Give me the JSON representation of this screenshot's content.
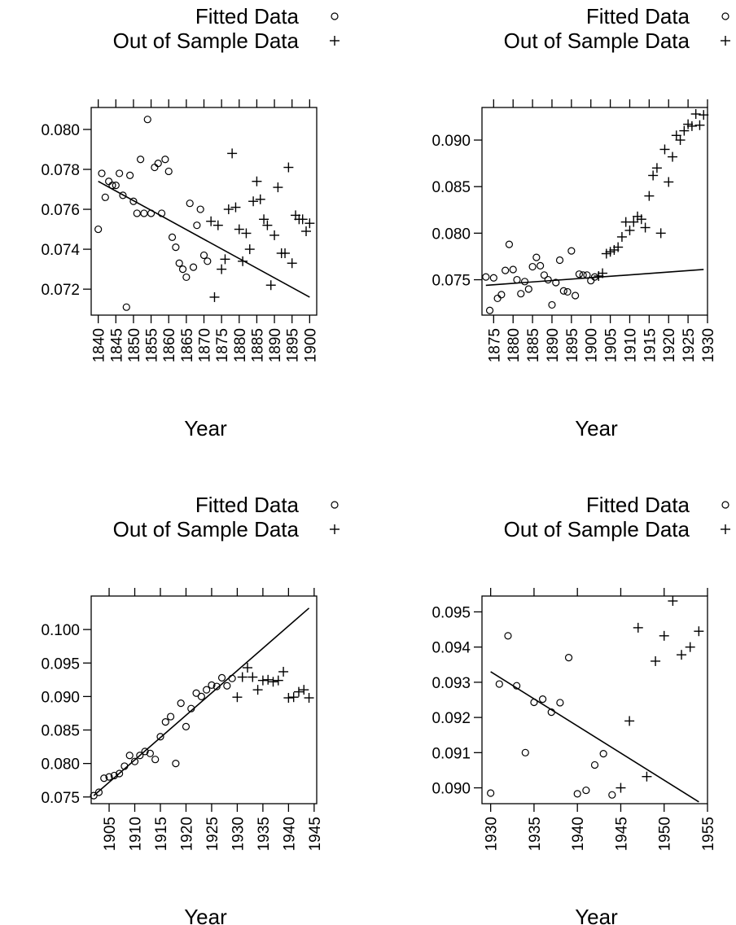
{
  "chart_data": [
    {
      "type": "scatter",
      "xlabel": "Year",
      "legend": [
        {
          "label": "Fitted Data",
          "symbol": "circle"
        },
        {
          "label": "Out of Sample Data",
          "symbol": "plus"
        }
      ],
      "xlim": [
        1838,
        1902
      ],
      "ylim": [
        0.0707,
        0.0811
      ],
      "xticks": [
        1840,
        1845,
        1850,
        1855,
        1860,
        1865,
        1870,
        1875,
        1880,
        1885,
        1890,
        1895,
        1900
      ],
      "yticks": [
        0.072,
        0.074,
        0.076,
        0.078,
        0.08
      ],
      "ytick_labels": [
        "0.072",
        "0.074",
        "0.076",
        "0.078",
        "0.080"
      ],
      "fitted_data": [
        [
          1840,
          0.075
        ],
        [
          1841,
          0.0778
        ],
        [
          1842,
          0.0766
        ],
        [
          1843,
          0.0774
        ],
        [
          1844,
          0.0772
        ],
        [
          1845,
          0.0772
        ],
        [
          1846,
          0.0778
        ],
        [
          1847,
          0.0767
        ],
        [
          1848,
          0.0711
        ],
        [
          1849,
          0.0777
        ],
        [
          1850,
          0.0764
        ],
        [
          1851,
          0.0758
        ],
        [
          1852,
          0.0785
        ],
        [
          1853,
          0.0758
        ],
        [
          1854,
          0.0805
        ],
        [
          1855,
          0.0758
        ],
        [
          1856,
          0.0781
        ],
        [
          1857,
          0.0783
        ],
        [
          1858,
          0.0758
        ],
        [
          1859,
          0.0785
        ],
        [
          1860,
          0.0779
        ],
        [
          1861,
          0.0746
        ],
        [
          1862,
          0.0741
        ],
        [
          1863,
          0.0733
        ],
        [
          1864,
          0.073
        ],
        [
          1865,
          0.0726
        ],
        [
          1866,
          0.0763
        ],
        [
          1867,
          0.0731
        ],
        [
          1868,
          0.0752
        ],
        [
          1869,
          0.076
        ],
        [
          1870,
          0.0737
        ],
        [
          1871,
          0.0734
        ]
      ],
      "out_of_sample_data": [
        [
          1872,
          0.0754
        ],
        [
          1873,
          0.0716
        ],
        [
          1874,
          0.0752
        ],
        [
          1875,
          0.073
        ],
        [
          1876,
          0.0735
        ],
        [
          1877,
          0.076
        ],
        [
          1878,
          0.0788
        ],
        [
          1879,
          0.0761
        ],
        [
          1880,
          0.075
        ],
        [
          1881,
          0.0734
        ],
        [
          1882,
          0.0748
        ],
        [
          1883,
          0.074
        ],
        [
          1884,
          0.0764
        ],
        [
          1885,
          0.0774
        ],
        [
          1886,
          0.0765
        ],
        [
          1887,
          0.0755
        ],
        [
          1888,
          0.0752
        ],
        [
          1889,
          0.0722
        ],
        [
          1890,
          0.0747
        ],
        [
          1891,
          0.0771
        ],
        [
          1892,
          0.0738
        ],
        [
          1893,
          0.0738
        ],
        [
          1894,
          0.0781
        ],
        [
          1895,
          0.0733
        ],
        [
          1896,
          0.0757
        ],
        [
          1897,
          0.0755
        ],
        [
          1898,
          0.0755
        ],
        [
          1899,
          0.0749
        ],
        [
          1900,
          0.0753
        ]
      ],
      "fit_line": [
        [
          1840,
          0.0774
        ],
        [
          1900,
          0.0716
        ]
      ]
    },
    {
      "type": "scatter",
      "xlabel": "Year",
      "legend": [
        {
          "label": "Fitted Data",
          "symbol": "circle"
        },
        {
          "label": "Out of Sample Data",
          "symbol": "plus"
        }
      ],
      "xlim": [
        1872,
        1930
      ],
      "ylim": [
        0.0712,
        0.0935
      ],
      "xticks": [
        1875,
        1880,
        1885,
        1890,
        1895,
        1900,
        1905,
        1910,
        1915,
        1920,
        1925,
        1930
      ],
      "yticks": [
        0.075,
        0.08,
        0.085,
        0.09
      ],
      "ytick_labels": [
        "0.075",
        "0.080",
        "0.085",
        "0.090"
      ],
      "fitted_data": [
        [
          1873,
          0.0753
        ],
        [
          1874,
          0.0717
        ],
        [
          1875,
          0.0752
        ],
        [
          1876,
          0.073
        ],
        [
          1877,
          0.0734
        ],
        [
          1878,
          0.076
        ],
        [
          1879,
          0.0788
        ],
        [
          1880,
          0.0761
        ],
        [
          1881,
          0.075
        ],
        [
          1882,
          0.0735
        ],
        [
          1883,
          0.0748
        ],
        [
          1884,
          0.074
        ],
        [
          1885,
          0.0764
        ],
        [
          1886,
          0.0774
        ],
        [
          1887,
          0.0765
        ],
        [
          1888,
          0.0755
        ],
        [
          1889,
          0.075
        ],
        [
          1890,
          0.0723
        ],
        [
          1891,
          0.0747
        ],
        [
          1892,
          0.0771
        ],
        [
          1893,
          0.0738
        ],
        [
          1894,
          0.0737
        ],
        [
          1895,
          0.0781
        ],
        [
          1896,
          0.0733
        ],
        [
          1897,
          0.0756
        ],
        [
          1898,
          0.0755
        ],
        [
          1899,
          0.0755
        ],
        [
          1900,
          0.0749
        ],
        [
          1901,
          0.0753
        ]
      ],
      "out_of_sample_data": [
        [
          1902,
          0.0754
        ],
        [
          1903,
          0.0757
        ],
        [
          1904,
          0.0778
        ],
        [
          1905,
          0.078
        ],
        [
          1906,
          0.0782
        ],
        [
          1907,
          0.0785
        ],
        [
          1908,
          0.0796
        ],
        [
          1909,
          0.0812
        ],
        [
          1910,
          0.0803
        ],
        [
          1911,
          0.0812
        ],
        [
          1912,
          0.0818
        ],
        [
          1913,
          0.0815
        ],
        [
          1914,
          0.0806
        ],
        [
          1915,
          0.084
        ],
        [
          1916,
          0.0862
        ],
        [
          1917,
          0.087
        ],
        [
          1918,
          0.08
        ],
        [
          1919,
          0.089
        ],
        [
          1920,
          0.0855
        ],
        [
          1921,
          0.0882
        ],
        [
          1922,
          0.0905
        ],
        [
          1923,
          0.09
        ],
        [
          1924,
          0.091
        ],
        [
          1925,
          0.0917
        ],
        [
          1926,
          0.0915
        ],
        [
          1927,
          0.0928
        ],
        [
          1928,
          0.0916
        ],
        [
          1929,
          0.0927
        ]
      ],
      "fit_line": [
        [
          1873,
          0.0744
        ],
        [
          1929,
          0.0761
        ]
      ]
    },
    {
      "type": "scatter",
      "xlabel": "Year",
      "legend": [
        {
          "label": "Fitted Data",
          "symbol": "circle"
        },
        {
          "label": "Out of Sample Data",
          "symbol": "plus"
        }
      ],
      "xlim": [
        1901.5,
        1945.5
      ],
      "ylim": [
        0.074,
        0.105
      ],
      "xticks": [
        1905,
        1910,
        1915,
        1920,
        1925,
        1930,
        1935,
        1940,
        1945
      ],
      "yticks": [
        0.075,
        0.08,
        0.085,
        0.09,
        0.095,
        0.1
      ],
      "ytick_labels": [
        "0.075",
        "0.080",
        "0.085",
        "0.090",
        "0.095",
        "0.100"
      ],
      "fitted_data": [
        [
          1902,
          0.0752
        ],
        [
          1903,
          0.0757
        ],
        [
          1904,
          0.0778
        ],
        [
          1905,
          0.078
        ],
        [
          1906,
          0.0782
        ],
        [
          1907,
          0.0785
        ],
        [
          1908,
          0.0796
        ],
        [
          1909,
          0.0812
        ],
        [
          1910,
          0.0803
        ],
        [
          1911,
          0.0812
        ],
        [
          1912,
          0.0818
        ],
        [
          1913,
          0.0815
        ],
        [
          1914,
          0.0806
        ],
        [
          1915,
          0.084
        ],
        [
          1916,
          0.0862
        ],
        [
          1917,
          0.087
        ],
        [
          1918,
          0.08
        ],
        [
          1919,
          0.089
        ],
        [
          1920,
          0.0855
        ],
        [
          1921,
          0.0882
        ],
        [
          1922,
          0.0905
        ],
        [
          1923,
          0.09
        ],
        [
          1924,
          0.091
        ],
        [
          1925,
          0.0917
        ],
        [
          1926,
          0.0915
        ],
        [
          1927,
          0.0928
        ],
        [
          1928,
          0.0916
        ],
        [
          1929,
          0.0927
        ]
      ],
      "out_of_sample_data": [
        [
          1930,
          0.0899
        ],
        [
          1931,
          0.0929
        ],
        [
          1932,
          0.0943
        ],
        [
          1933,
          0.0929
        ],
        [
          1934,
          0.091
        ],
        [
          1935,
          0.0924
        ],
        [
          1936,
          0.0925
        ],
        [
          1937,
          0.0922
        ],
        [
          1938,
          0.0924
        ],
        [
          1939,
          0.0937
        ],
        [
          1940,
          0.0898
        ],
        [
          1941,
          0.0899
        ],
        [
          1942,
          0.0907
        ],
        [
          1943,
          0.091
        ],
        [
          1944,
          0.0898
        ]
      ],
      "fit_line": [
        [
          1902,
          0.0752
        ],
        [
          1944,
          0.1032
        ]
      ]
    },
    {
      "type": "scatter",
      "xlabel": "Year",
      "legend": [
        {
          "label": "Fitted Data",
          "symbol": "circle"
        },
        {
          "label": "Out of Sample Data",
          "symbol": "plus"
        }
      ],
      "xlim": [
        1929,
        1955
      ],
      "ylim": [
        0.08955,
        0.09545
      ],
      "xticks": [
        1930,
        1935,
        1940,
        1945,
        1950,
        1955
      ],
      "yticks": [
        0.09,
        0.091,
        0.092,
        0.093,
        0.094,
        0.095
      ],
      "ytick_labels": [
        "0.090",
        "0.091",
        "0.092",
        "0.093",
        "0.094",
        "0.095"
      ],
      "fitted_data": [
        [
          1930,
          0.08985
        ],
        [
          1931,
          0.09295
        ],
        [
          1932,
          0.09432
        ],
        [
          1933,
          0.0929
        ],
        [
          1934,
          0.091
        ],
        [
          1935,
          0.09243
        ],
        [
          1936,
          0.09252
        ],
        [
          1937,
          0.09215
        ],
        [
          1938,
          0.09242
        ],
        [
          1939,
          0.0937
        ],
        [
          1940,
          0.08983
        ],
        [
          1941,
          0.08993
        ],
        [
          1942,
          0.09065
        ],
        [
          1943,
          0.09097
        ],
        [
          1944,
          0.0898
        ]
      ],
      "out_of_sample_data": [
        [
          1945,
          0.09
        ],
        [
          1946,
          0.0919
        ],
        [
          1947,
          0.09455
        ],
        [
          1948,
          0.09032
        ],
        [
          1949,
          0.0936
        ],
        [
          1950,
          0.09432
        ],
        [
          1951,
          0.09531
        ],
        [
          1952,
          0.09378
        ],
        [
          1953,
          0.094
        ],
        [
          1954,
          0.09445
        ]
      ],
      "fit_line": [
        [
          1930,
          0.0933
        ],
        [
          1954,
          0.0896
        ]
      ]
    }
  ]
}
